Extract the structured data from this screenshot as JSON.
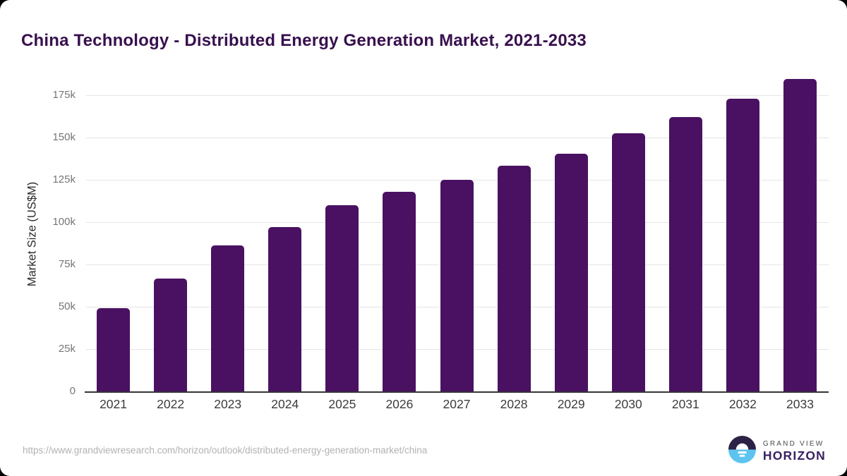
{
  "chart_data": {
    "type": "bar",
    "title": "China Technology - Distributed Energy Generation Market, 2021-2033",
    "xlabel": "",
    "ylabel": "Market Size (US$M)",
    "categories": [
      "2021",
      "2022",
      "2023",
      "2024",
      "2025",
      "2026",
      "2027",
      "2028",
      "2029",
      "2030",
      "2031",
      "2032",
      "2033"
    ],
    "values": [
      49000,
      66500,
      86100,
      97000,
      110000,
      117800,
      125200,
      133300,
      140500,
      152400,
      162200,
      173100,
      184700
    ],
    "ylim": [
      0,
      187500
    ],
    "grid": true,
    "legend": "none",
    "y_ticks": [
      {
        "value": 0,
        "label": "0"
      },
      {
        "value": 25000,
        "label": "25k"
      },
      {
        "value": 50000,
        "label": "50k"
      },
      {
        "value": 75000,
        "label": "75k"
      },
      {
        "value": 100000,
        "label": "100k"
      },
      {
        "value": 125000,
        "label": "125k"
      },
      {
        "value": 150000,
        "label": "150k"
      },
      {
        "value": 175000,
        "label": "175k"
      }
    ],
    "bar_color": "#4a1162"
  },
  "colors": {
    "title_text": "#38104e",
    "bar": "#4a1162",
    "logo_circle_top": "#2d2145",
    "logo_circle_bottom": "#5ec3ef",
    "logo_horizon_text": "#3a2163"
  },
  "footer": {
    "source_url": "https://www.grandviewresearch.com/horizon/outlook/distributed-energy-generation-market/china",
    "logo": {
      "line1": "GRAND VIEW",
      "line2": "HORIZON"
    }
  }
}
